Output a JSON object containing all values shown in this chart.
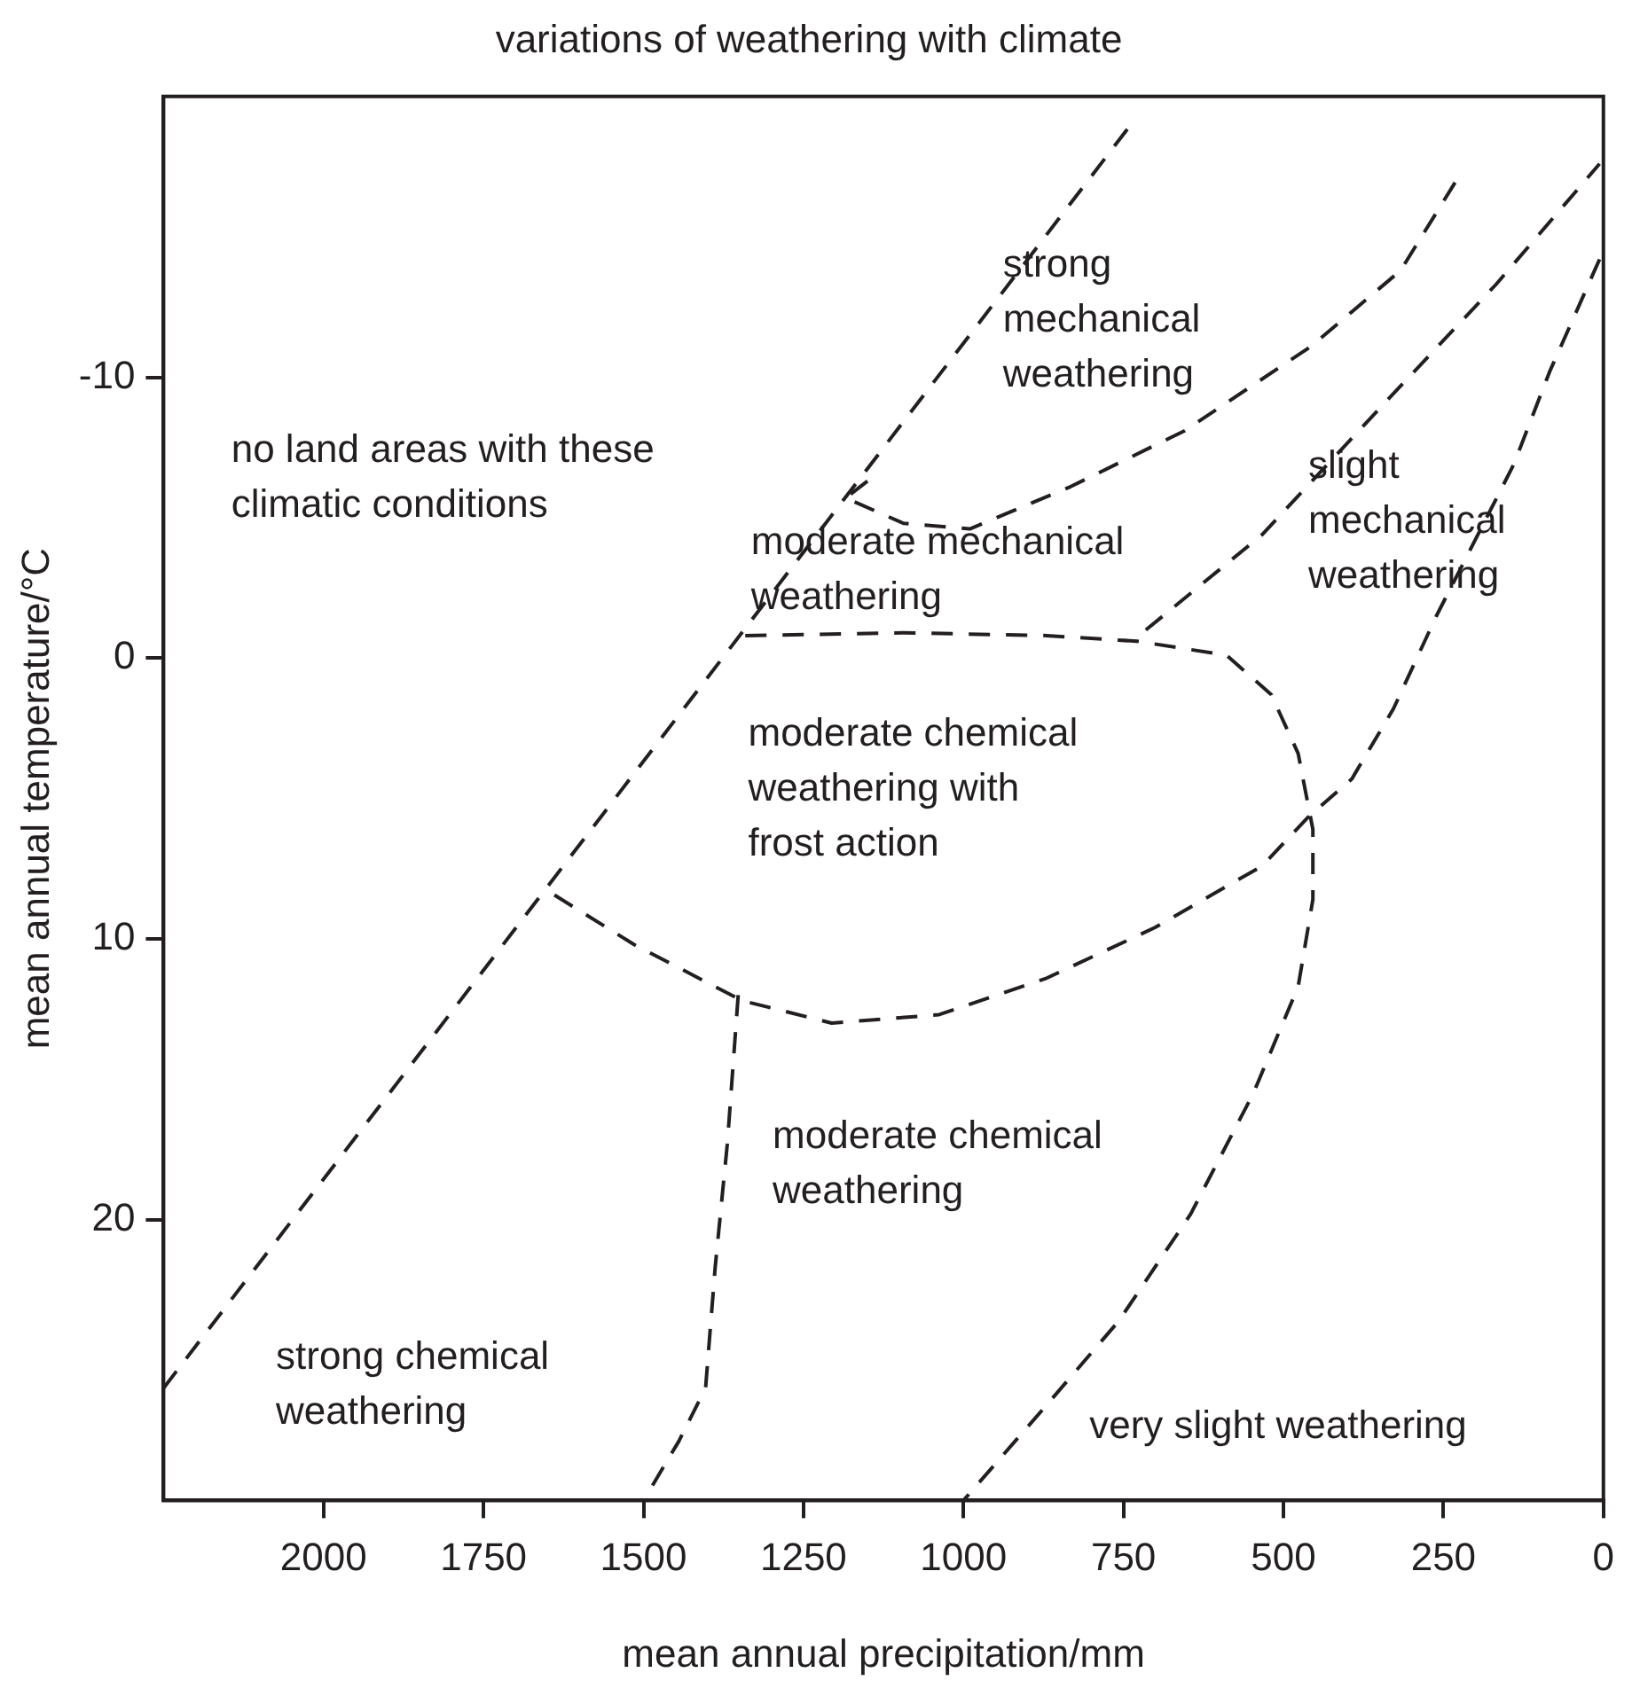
{
  "chart_data": {
    "type": "line",
    "title": "variations of weathering with climate",
    "xlabel": "mean annual precipitation/mm",
    "ylabel": "mean annual temperature/°C",
    "xlim": [
      2250,
      0
    ],
    "xticks": [
      2000,
      1750,
      1500,
      1250,
      1000,
      750,
      500,
      250,
      0
    ],
    "ylim": [
      30,
      -20
    ],
    "yticks": [
      -10,
      0,
      10,
      20
    ],
    "line_style": "dashed",
    "marker": "none",
    "series": [
      {
        "color": "#231f20",
        "x": [
          2250,
          735
        ],
        "values": [
          26,
          -19.1
        ]
      },
      {
        "color": "#231f20",
        "x": [
          1150,
          1184,
          1094,
          990,
          833,
          654,
          457,
          317,
          230
        ],
        "values": [
          -6.3,
          -5.7,
          -4.8,
          -4.6,
          -6.1,
          -8.1,
          -11.1,
          -13.8,
          -17
        ]
      },
      {
        "color": "#231f20",
        "x": [
          1341,
          1094,
          870,
          729,
          589,
          519,
          477,
          454,
          454,
          477,
          547,
          645,
          757,
          870,
          1000
        ],
        "values": [
          -0.8,
          -0.9,
          -0.8,
          -0.6,
          -0.1,
          1.3,
          3.4,
          6.1,
          8.6,
          11.7,
          15.5,
          19.8,
          23.6,
          26.6,
          30
        ]
      },
      {
        "color": "#231f20",
        "x": [
          6,
          84,
          140,
          196,
          261,
          328,
          393,
          463,
          533,
          701,
          870,
          1038,
          1206,
          1346,
          1515,
          1649
        ],
        "values": [
          -14.2,
          -10.2,
          -6.9,
          -4.4,
          -1.5,
          1.8,
          4.3,
          5.7,
          7.4,
          9.6,
          11.4,
          12.7,
          13,
          12.2,
          10.2,
          8.3
        ]
      },
      {
        "color": "#231f20",
        "x": [
          1352,
          1369,
          1388,
          1403,
          1445,
          1500
        ],
        "values": [
          12,
          17.3,
          21.7,
          26,
          27.9,
          30
        ]
      },
      {
        "color": "#231f20",
        "x": [
          715,
          533,
          337,
          168,
          6
        ],
        "values": [
          -1,
          -4.4,
          -9.2,
          -13.3,
          -17.6
        ]
      }
    ],
    "annotations": [
      "no land areas with these\nclimatic conditions",
      "strong\nmechanical\nweathering",
      "moderate mechanical\nweathering",
      "slight\nmechanical\nweathering",
      "moderate chemical\nweathering with\nfrost action",
      "moderate chemical\nweathering",
      "strong chemical\nweathering",
      "very slight weathering"
    ]
  }
}
